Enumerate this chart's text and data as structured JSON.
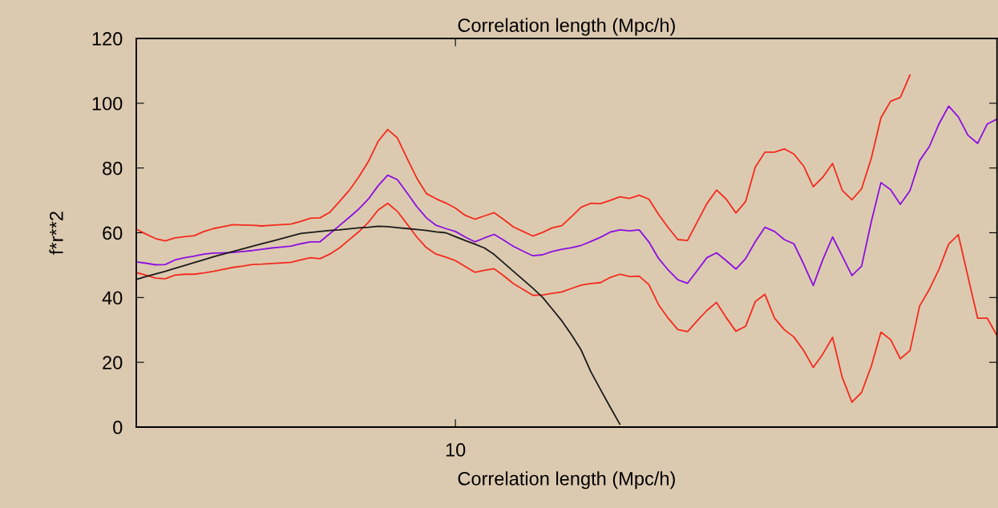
{
  "chart_data": {
    "type": "line",
    "title": "Correlation length (Mpc/h)",
    "xlabel": "Correlation length (Mpc/h)",
    "ylabel": "f*r**2",
    "categories": [
      null,
      null,
      null,
      null,
      null,
      null,
      null,
      null,
      null,
      null,
      null,
      null,
      null,
      null,
      null,
      null,
      null,
      null,
      null,
      null,
      null,
      null,
      null,
      null,
      null,
      null,
      null,
      null,
      null,
      null,
      null,
      null,
      null,
      "10",
      null,
      null,
      null,
      null,
      null,
      null,
      null,
      null,
      null,
      null,
      null,
      null,
      null,
      null,
      null,
      null,
      null,
      null,
      null,
      null,
      null,
      null,
      null,
      null,
      null,
      null,
      null,
      null,
      null,
      null,
      null,
      null,
      null,
      null,
      null,
      null,
      null,
      null,
      null,
      null,
      null,
      null,
      null,
      null,
      null,
      null,
      null,
      null,
      null,
      null,
      null,
      null,
      null,
      null,
      null,
      null
    ],
    "ylim": [
      0,
      120
    ],
    "yticks": [
      0,
      20,
      40,
      60,
      80,
      100,
      120
    ],
    "series": [
      {
        "color": "#f42a1e",
        "values": [
          61.1,
          59.6,
          58.2,
          57.5,
          58.4,
          58.8,
          59.1,
          60.4,
          61.3,
          61.9,
          62.5,
          62.4,
          62.3,
          62.1,
          62.3,
          62.5,
          62.7,
          63.5,
          64.5,
          64.6,
          66.3,
          69.6,
          73.0,
          77.2,
          82.0,
          88.2,
          91.9,
          89.3,
          83.0,
          76.9,
          72.1,
          70.5,
          69.2,
          67.6,
          65.4,
          64.2,
          65.2,
          66.2,
          64.1,
          61.8,
          60.4,
          59.0,
          60.1,
          61.5,
          62.2,
          65.0,
          67.9,
          69.1,
          69.0,
          70.0,
          71.1,
          70.6,
          71.6,
          70.4,
          65.7,
          61.6,
          57.9,
          57.6,
          63.3,
          69.0,
          73.2,
          70.4,
          66.1,
          69.6,
          80.2,
          84.9,
          84.9,
          85.9,
          84.3,
          80.6,
          74.2,
          77.2,
          81.4,
          73.1,
          70.2,
          73.6,
          83.0,
          95.5,
          100.6,
          101.8,
          108.7,
          null,
          null,
          null,
          null,
          null,
          null,
          null,
          null,
          null
        ]
      },
      {
        "color": "#8b0ee0",
        "values": [
          51.0,
          50.6,
          50.1,
          50.2,
          51.6,
          52.3,
          52.8,
          53.4,
          53.7,
          53.8,
          53.9,
          54.2,
          54.5,
          54.9,
          55.3,
          55.6,
          55.9,
          56.6,
          57.2,
          57.2,
          59.7,
          62.2,
          64.7,
          67.3,
          70.4,
          74.5,
          77.8,
          76.4,
          72.3,
          68.1,
          64.6,
          62.3,
          61.3,
          60.4,
          58.7,
          57.2,
          58.4,
          59.5,
          57.7,
          55.8,
          54.3,
          52.9,
          53.2,
          54.2,
          54.9,
          55.4,
          56.1,
          57.3,
          58.6,
          60.2,
          60.9,
          60.6,
          60.9,
          57.2,
          52.1,
          48.5,
          45.5,
          44.4,
          48.3,
          52.3,
          53.8,
          51.4,
          48.8,
          52.0,
          57.2,
          61.7,
          60.4,
          57.9,
          56.6,
          50.4,
          43.7,
          51.8,
          58.7,
          52.8,
          46.8,
          49.7,
          63.4,
          75.5,
          73.3,
          68.8,
          73.0,
          82.3,
          86.6,
          93.6,
          99.1,
          95.8,
          90.1,
          87.6,
          93.6,
          95.1
        ]
      },
      {
        "color": "#f42a1e",
        "values": [
          47.7,
          46.9,
          46.0,
          45.8,
          46.9,
          47.2,
          47.2,
          47.6,
          48.1,
          48.7,
          49.3,
          49.7,
          50.2,
          50.3,
          50.5,
          50.7,
          50.9,
          51.6,
          52.3,
          52.0,
          53.4,
          55.3,
          57.8,
          60.3,
          63.2,
          67.0,
          69.1,
          66.6,
          62.7,
          58.7,
          55.4,
          53.4,
          52.5,
          51.4,
          49.6,
          47.8,
          48.4,
          48.9,
          46.7,
          44.3,
          42.5,
          40.7,
          40.8,
          41.3,
          41.7,
          42.8,
          43.8,
          44.3,
          44.6,
          46.2,
          47.2,
          46.5,
          46.6,
          44.0,
          37.8,
          33.6,
          30.1,
          29.5,
          32.8,
          36.0,
          38.5,
          33.8,
          29.6,
          31.1,
          38.7,
          41.0,
          33.6,
          30.1,
          27.8,
          23.7,
          18.4,
          22.6,
          27.7,
          15.3,
          7.7,
          10.7,
          18.8,
          29.3,
          27.0,
          21.1,
          23.6,
          37.4,
          42.5,
          48.7,
          56.5,
          59.4,
          46.4,
          33.6,
          33.6,
          28.2
        ]
      },
      {
        "color": "#1a1a1a",
        "values": [
          45.6,
          46.5,
          47.3,
          48.1,
          49.0,
          49.9,
          50.8,
          51.7,
          52.6,
          53.4,
          54.2,
          55.0,
          55.8,
          56.6,
          57.4,
          58.2,
          59.0,
          59.8,
          60.1,
          60.4,
          60.7,
          60.9,
          61.2,
          61.5,
          61.7,
          62.0,
          61.9,
          61.6,
          61.3,
          61.0,
          60.7,
          60.3,
          60.0,
          58.8,
          57.6,
          56.5,
          55.3,
          53.3,
          50.7,
          48.1,
          45.5,
          42.9,
          40.1,
          36.5,
          32.8,
          28.5,
          23.8,
          17.1,
          11.6,
          6.2,
          0.9,
          null,
          null,
          null,
          null,
          null,
          null,
          null,
          null,
          null,
          null,
          null,
          null,
          null,
          null,
          null,
          null,
          null,
          null,
          null,
          null,
          null,
          null,
          null,
          null,
          null,
          null,
          null,
          null,
          null,
          null,
          null,
          null,
          null,
          null,
          null,
          null,
          null,
          null,
          null
        ]
      }
    ]
  }
}
